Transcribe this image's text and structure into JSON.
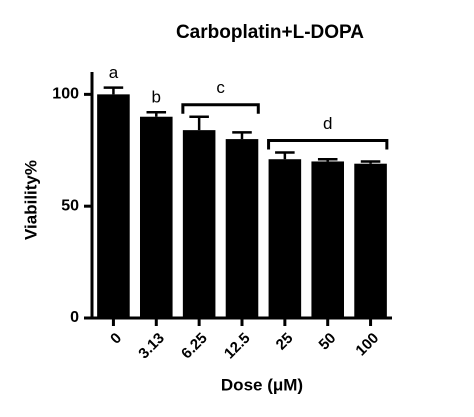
{
  "chart_data": {
    "type": "bar",
    "title": "Carboplatin+L-DOPA",
    "x_label": "Dose (μM)",
    "y_label": "Viability%",
    "categories": [
      "0",
      "3.13",
      "6.25",
      "12.5",
      "25",
      "50",
      "100"
    ],
    "values": [
      100,
      90,
      84,
      80,
      71,
      70,
      69
    ],
    "errors": [
      3,
      2,
      6,
      3,
      3,
      1,
      1
    ],
    "color": "#000000",
    "ylim": [
      0,
      110
    ],
    "yticks": [
      0,
      50,
      100
    ],
    "annotations": [
      {
        "text": "a",
        "from": "0",
        "to": "0"
      },
      {
        "text": "b",
        "from": "3.13",
        "to": "3.13"
      },
      {
        "text": "c",
        "from": "6.25",
        "to": "12.5"
      },
      {
        "text": "d",
        "from": "25",
        "to": "100"
      }
    ]
  }
}
